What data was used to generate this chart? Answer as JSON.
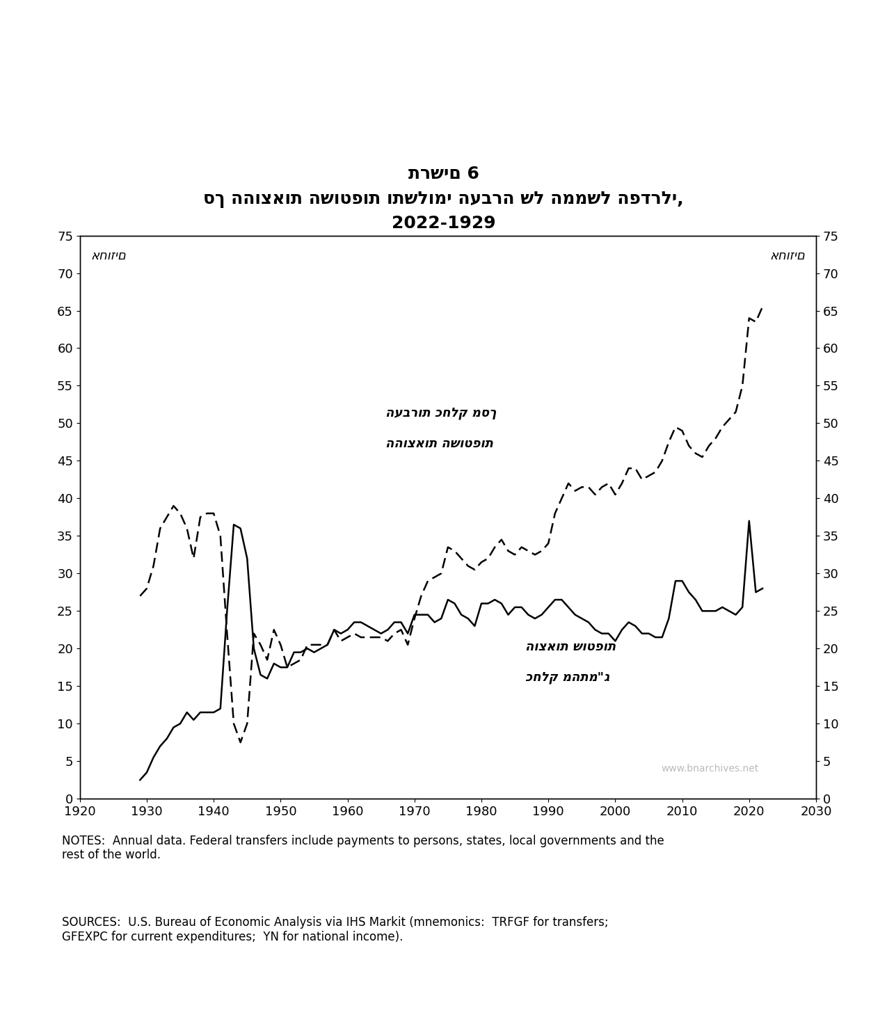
{
  "title_line1": "תרשים 6",
  "title_line2": "סך ההוצאות השוטפות ותשלומי העברה של הממשל הפדרלי,",
  "title_line3": "2022-1929",
  "ylabel_left": "אחוזים",
  "ylabel_right": "אחוזים",
  "label_dashed_line1": "העברות כחלק מסך",
  "label_dashed_line2": "ההוצאות השוטפות",
  "label_solid_line1": "הוצאות שוטפות",
  "label_solid_line2": "כחלק מהתמ\"ג",
  "watermark": "www.bnarchives.net",
  "notes": "NOTES:  Annual data. Federal transfers include payments to persons, states, local governments and the\nrest of the world.",
  "sources": "SOURCES:  U.S. Bureau of Economic Analysis via IHS Markit (mnemonics:  TRFGF for transfers;\nGFEXPC for current expenditures;  YN for national income).",
  "xlim": [
    1920,
    2030
  ],
  "ylim": [
    0,
    75
  ],
  "xticks": [
    1920,
    1930,
    1940,
    1950,
    1960,
    1970,
    1980,
    1990,
    2000,
    2010,
    2020,
    2030
  ],
  "yticks": [
    0,
    5,
    10,
    15,
    20,
    25,
    30,
    35,
    40,
    45,
    50,
    55,
    60,
    65,
    70,
    75
  ],
  "solid_x": [
    1929,
    1930,
    1931,
    1932,
    1933,
    1934,
    1935,
    1936,
    1937,
    1938,
    1939,
    1940,
    1941,
    1942,
    1943,
    1944,
    1945,
    1946,
    1947,
    1948,
    1949,
    1950,
    1951,
    1952,
    1953,
    1954,
    1955,
    1956,
    1957,
    1958,
    1959,
    1960,
    1961,
    1962,
    1963,
    1964,
    1965,
    1966,
    1967,
    1968,
    1969,
    1970,
    1971,
    1972,
    1973,
    1974,
    1975,
    1976,
    1977,
    1978,
    1979,
    1980,
    1981,
    1982,
    1983,
    1984,
    1985,
    1986,
    1987,
    1988,
    1989,
    1990,
    1991,
    1992,
    1993,
    1994,
    1995,
    1996,
    1997,
    1998,
    1999,
    2000,
    2001,
    2002,
    2003,
    2004,
    2005,
    2006,
    2007,
    2008,
    2009,
    2010,
    2011,
    2012,
    2013,
    2014,
    2015,
    2016,
    2017,
    2018,
    2019,
    2020,
    2021,
    2022
  ],
  "solid_y": [
    2.5,
    3.5,
    5.5,
    7.0,
    8.0,
    9.5,
    10.0,
    11.5,
    10.5,
    11.5,
    11.5,
    11.5,
    12.0,
    25.0,
    36.5,
    36.0,
    32.0,
    20.0,
    16.5,
    16.0,
    18.0,
    17.5,
    17.5,
    19.5,
    19.5,
    20.0,
    19.5,
    20.0,
    20.5,
    22.5,
    22.0,
    22.5,
    23.5,
    23.5,
    23.0,
    22.5,
    22.0,
    22.5,
    23.5,
    23.5,
    22.0,
    24.5,
    24.5,
    24.5,
    23.5,
    24.0,
    26.5,
    26.0,
    24.5,
    24.0,
    23.0,
    26.0,
    26.0,
    26.5,
    26.0,
    24.5,
    25.5,
    25.5,
    24.5,
    24.0,
    24.5,
    25.5,
    26.5,
    26.5,
    25.5,
    24.5,
    24.0,
    23.5,
    22.5,
    22.0,
    22.0,
    21.0,
    22.5,
    23.5,
    23.0,
    22.0,
    22.0,
    21.5,
    21.5,
    24.0,
    29.0,
    29.0,
    27.5,
    26.5,
    25.0,
    25.0,
    25.0,
    25.5,
    25.0,
    24.5,
    25.5,
    37.0,
    27.5,
    28.0
  ],
  "dashed_x": [
    1929,
    1930,
    1931,
    1932,
    1933,
    1934,
    1935,
    1936,
    1937,
    1938,
    1939,
    1940,
    1941,
    1942,
    1943,
    1944,
    1945,
    1946,
    1947,
    1948,
    1949,
    1950,
    1951,
    1952,
    1953,
    1954,
    1955,
    1956,
    1957,
    1958,
    1959,
    1960,
    1961,
    1962,
    1963,
    1964,
    1965,
    1966,
    1967,
    1968,
    1969,
    1970,
    1971,
    1972,
    1973,
    1974,
    1975,
    1976,
    1977,
    1978,
    1979,
    1980,
    1981,
    1982,
    1983,
    1984,
    1985,
    1986,
    1987,
    1988,
    1989,
    1990,
    1991,
    1992,
    1993,
    1994,
    1995,
    1996,
    1997,
    1998,
    1999,
    2000,
    2001,
    2002,
    2003,
    2004,
    2005,
    2006,
    2007,
    2008,
    2009,
    2010,
    2011,
    2012,
    2013,
    2014,
    2015,
    2016,
    2017,
    2018,
    2019,
    2020,
    2021,
    2022
  ],
  "dashed_y": [
    27.0,
    28.0,
    31.0,
    36.0,
    37.5,
    39.0,
    38.0,
    36.0,
    32.0,
    37.5,
    38.0,
    38.0,
    35.0,
    22.0,
    10.0,
    7.5,
    10.0,
    22.0,
    20.5,
    18.5,
    22.5,
    20.5,
    17.5,
    18.0,
    18.5,
    20.5,
    20.5,
    20.5,
    20.5,
    22.5,
    21.0,
    21.5,
    22.0,
    21.5,
    21.5,
    21.5,
    21.5,
    21.0,
    22.0,
    22.5,
    20.5,
    24.0,
    27.0,
    29.0,
    29.5,
    30.0,
    33.5,
    33.0,
    32.0,
    31.0,
    30.5,
    31.5,
    32.0,
    33.5,
    34.5,
    33.0,
    32.5,
    33.5,
    33.0,
    32.5,
    33.0,
    34.0,
    38.0,
    40.0,
    42.0,
    41.0,
    41.5,
    41.5,
    40.5,
    41.5,
    42.0,
    40.5,
    42.0,
    44.0,
    44.0,
    42.5,
    43.0,
    43.5,
    45.0,
    47.5,
    49.5,
    49.0,
    47.0,
    46.0,
    45.5,
    47.0,
    48.0,
    49.5,
    50.5,
    51.5,
    55.0,
    64.0,
    63.5,
    65.5
  ],
  "background_color": "#ffffff",
  "line_color": "#000000"
}
